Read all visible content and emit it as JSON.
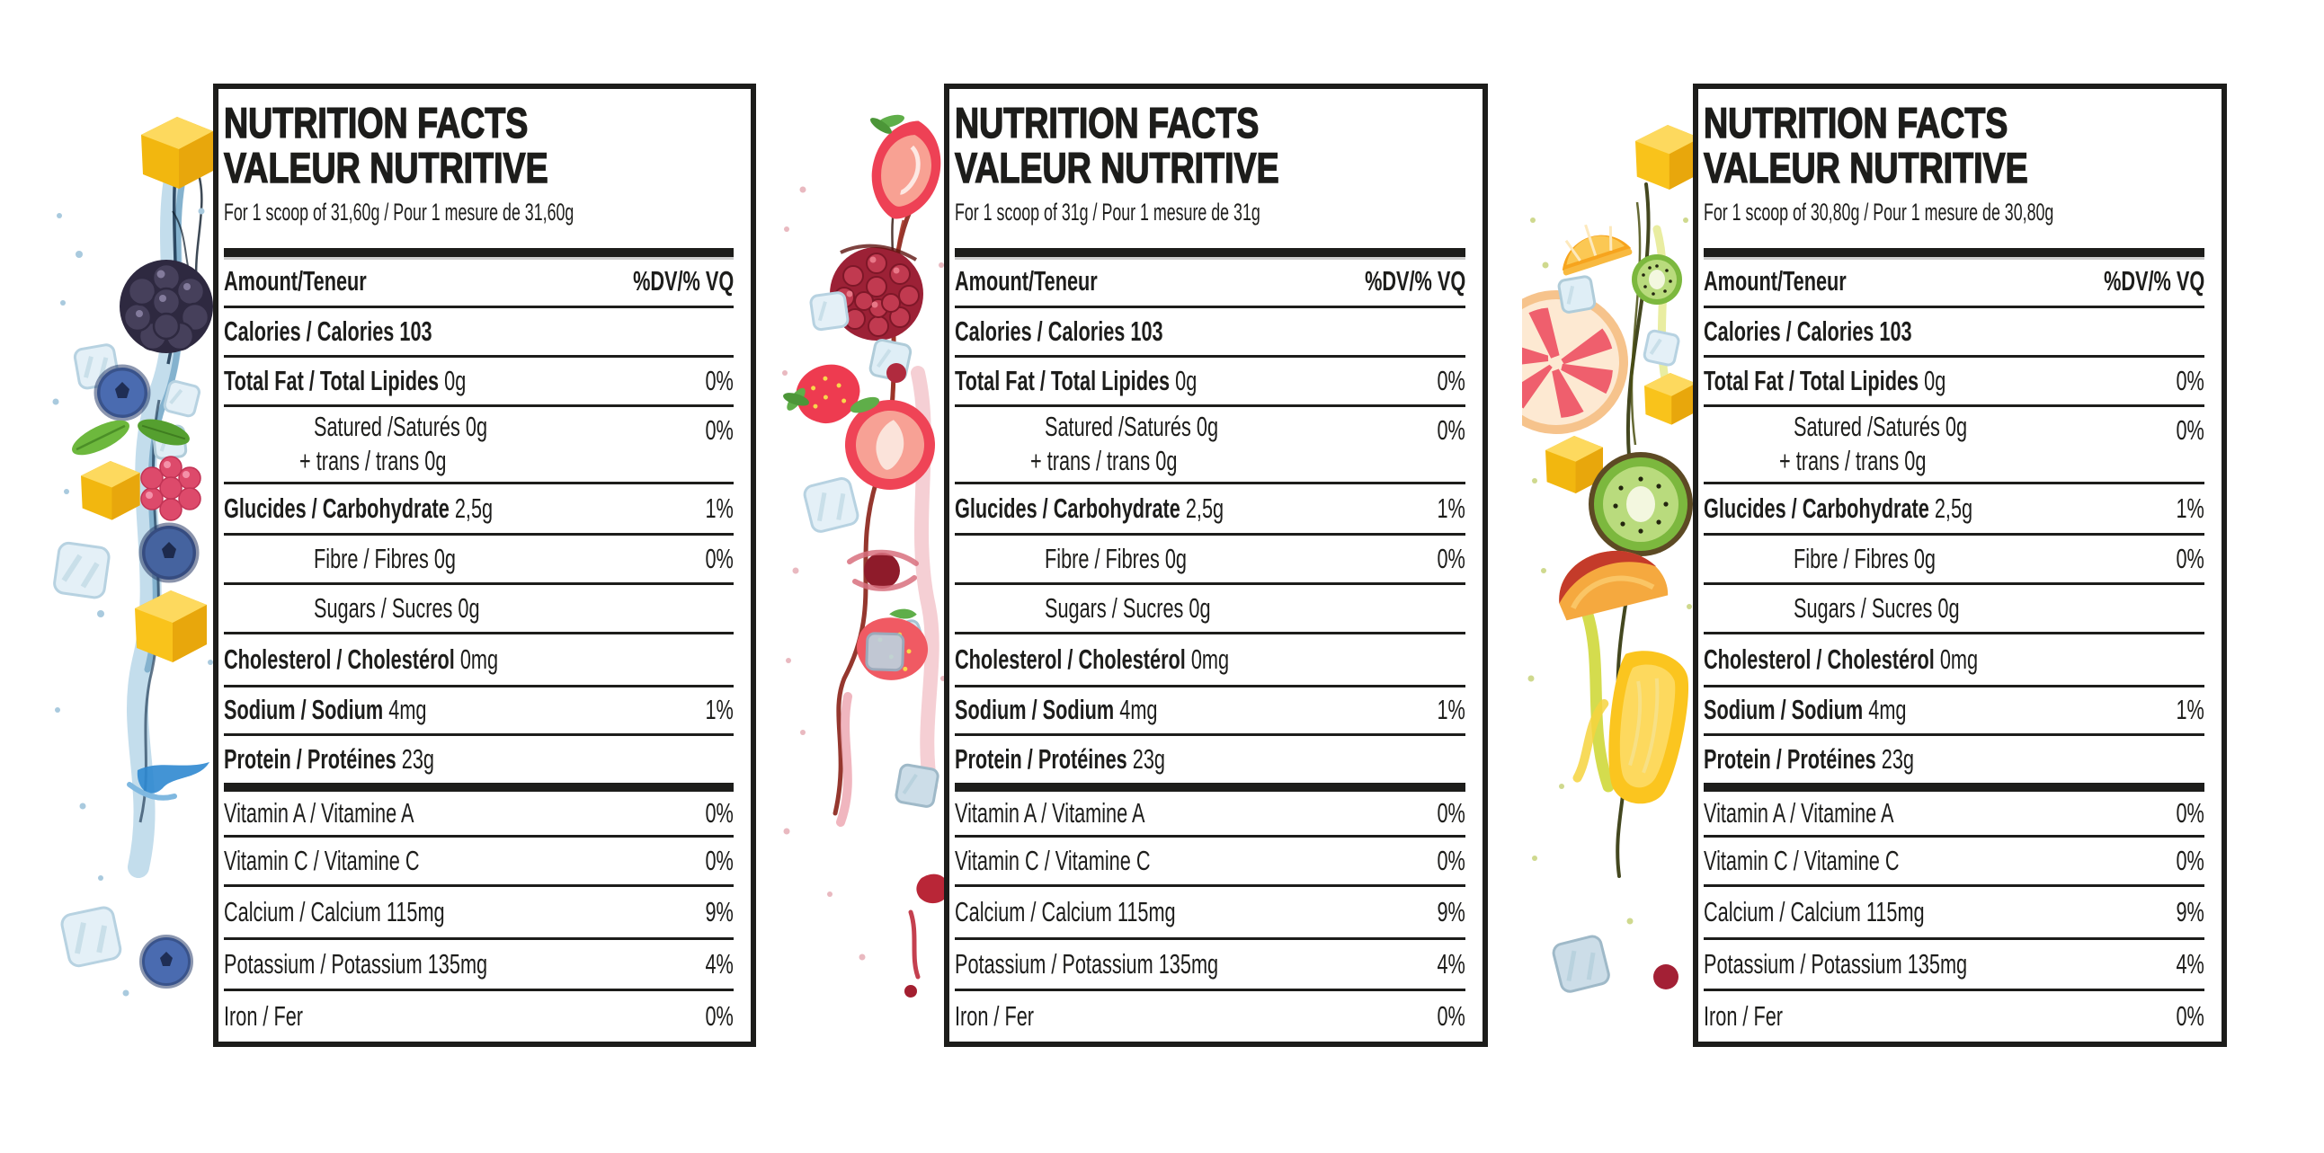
{
  "colors": {
    "ink": "#1d1d1b",
    "paper": "#ffffff",
    "bar_shadow": "#cdcdcd"
  },
  "shared": {
    "title_line1": "NUTRITION FACTS",
    "title_line2": "VALEUR NUTRITIVE",
    "columns": {
      "left": "Amount/Teneur",
      "right": "%DV/% VQ"
    },
    "rows": [
      {
        "name": "Calories / Calories",
        "amount": "103",
        "dv": "",
        "style": "bold",
        "amount_bold": true
      },
      {
        "name": "Total Fat / Total Lipides",
        "amount": "0g",
        "dv": "0%",
        "style": "bold"
      },
      {
        "name": "Satured /Saturés",
        "amount": "0g",
        "name2": "+ trans / trans",
        "amount2": "0g",
        "dv": "0%",
        "style": "sub2"
      },
      {
        "name": "Glucides / Carbohydrate",
        "amount": "2,5g",
        "dv": "1%",
        "style": "bold"
      },
      {
        "name": "Fibre / Fibres",
        "amount": "0g",
        "dv": "0%",
        "style": "sub"
      },
      {
        "name": "Sugars / Sucres",
        "amount": "0g",
        "dv": "",
        "style": "sub"
      },
      {
        "name": "Cholesterol / Cholestérol",
        "amount": "0mg",
        "dv": "",
        "style": "bold"
      },
      {
        "name": "Sodium / Sodium",
        "amount": "4mg",
        "dv": "1%",
        "style": "bold"
      },
      {
        "name": "Protein / Protéines",
        "amount": "23g",
        "dv": "",
        "style": "bold",
        "thick_after": true
      },
      {
        "name": "Vitamin A / Vitamine A",
        "amount": "",
        "dv": "0%",
        "style": "plain"
      },
      {
        "name": "Vitamin C / Vitamine C",
        "amount": "",
        "dv": "0%",
        "style": "plain"
      },
      {
        "name": "Calcium / Calcium",
        "amount": "115mg",
        "dv": "9%",
        "style": "plain"
      },
      {
        "name": "Potassium / Potassium",
        "amount": "135mg",
        "dv": "4%",
        "style": "plain"
      },
      {
        "name": "Iron / Fer",
        "amount": "",
        "dv": "0%",
        "style": "plain"
      }
    ]
  },
  "labels": [
    {
      "serving": "For 1 scoop of 31,60g / Pour 1 mesure de 31,60g",
      "fruit_theme": "mixed-berries-blue-water-splash"
    },
    {
      "serving": "For 1 scoop of 31g / Pour 1 mesure de 31g",
      "fruit_theme": "strawberry-pomegranate-red-splash"
    },
    {
      "serving": "For 1 scoop of 30,80g / Pour 1 mesure de 30,80g",
      "fruit_theme": "tropical-citrus-kiwi-splash"
    }
  ]
}
